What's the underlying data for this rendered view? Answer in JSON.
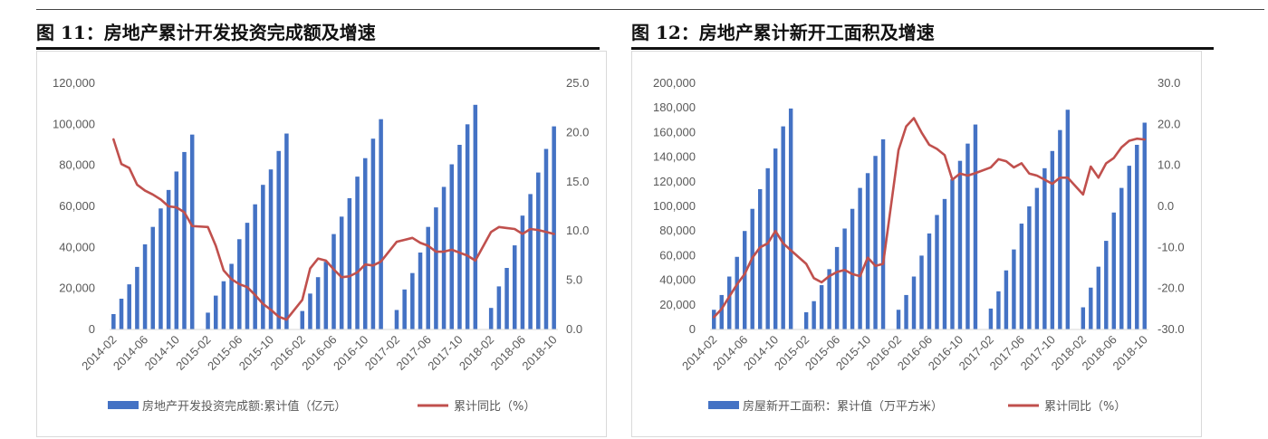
{
  "chart_data": [
    {
      "title": "图 11：房地产累计开发投资完成额及增速",
      "type": "bar",
      "y_left_ticks": [
        "0",
        "20,000",
        "40,000",
        "60,000",
        "80,000",
        "100,000",
        "120,000"
      ],
      "y_left_range": [
        0,
        120000
      ],
      "y_right_ticks": [
        "0.0",
        "5.0",
        "10.0",
        "15.0",
        "20.0",
        "25.0"
      ],
      "y_right_range": [
        0,
        25
      ],
      "x_tick_labels": [
        "2014-02",
        "2014-06",
        "2014-10",
        "2015-02",
        "2015-06",
        "2015-10",
        "2016-02",
        "2016-06",
        "2016-10",
        "2017-02",
        "2017-06",
        "2017-10",
        "2018-02",
        "2018-06",
        "2018-10"
      ],
      "months": [
        "2014-02",
        "2014-03",
        "2014-04",
        "2014-05",
        "2014-06",
        "2014-07",
        "2014-08",
        "2014-09",
        "2014-10",
        "2014-11",
        "2014-12",
        "2015-02",
        "2015-03",
        "2015-04",
        "2015-05",
        "2015-06",
        "2015-07",
        "2015-08",
        "2015-09",
        "2015-10",
        "2015-11",
        "2015-12",
        "2016-02",
        "2016-03",
        "2016-04",
        "2016-05",
        "2016-06",
        "2016-07",
        "2016-08",
        "2016-09",
        "2016-10",
        "2016-11",
        "2016-12",
        "2017-02",
        "2017-03",
        "2017-04",
        "2017-05",
        "2017-06",
        "2017-07",
        "2017-08",
        "2017-09",
        "2017-10",
        "2017-11",
        "2017-12",
        "2018-02",
        "2018-03",
        "2018-04",
        "2018-05",
        "2018-06",
        "2018-07",
        "2018-08",
        "2018-09",
        "2018-10"
      ],
      "series": [
        {
          "name": "房地产开发投资完成额:累计值（亿元）",
          "kind": "bar",
          "axis": "left",
          "color": "#4472c4",
          "values": [
            7500,
            15000,
            22000,
            30500,
            41500,
            50000,
            59000,
            68000,
            77000,
            86500,
            95000,
            8200,
            16500,
            23500,
            32000,
            44000,
            52000,
            61000,
            70500,
            78000,
            87000,
            95500,
            9000,
            17500,
            25500,
            33000,
            46500,
            55000,
            64000,
            74500,
            83500,
            93000,
            102500,
            9500,
            19500,
            27500,
            37500,
            50000,
            59500,
            69500,
            80500,
            90000,
            100000,
            109500,
            10500,
            21000,
            30000,
            41000,
            55500,
            66000,
            76500,
            88000,
            99000
          ]
        },
        {
          "name": "累计同比（%）",
          "kind": "line",
          "axis": "right",
          "color": "#c0504d",
          "values": [
            19.3,
            16.8,
            16.4,
            14.7,
            14.1,
            13.7,
            13.2,
            12.5,
            12.4,
            11.9,
            10.5,
            10.4,
            8.5,
            6.0,
            5.1,
            4.6,
            4.3,
            3.5,
            2.6,
            2.0,
            1.3,
            1.0,
            3.0,
            6.2,
            7.2,
            7.0,
            6.1,
            5.3,
            5.4,
            5.8,
            6.6,
            6.5,
            6.9,
            8.9,
            9.1,
            9.3,
            8.8,
            8.5,
            7.9,
            7.9,
            8.1,
            7.8,
            7.5,
            7.0,
            9.9,
            10.4,
            10.3,
            10.2,
            9.7,
            10.2,
            10.1,
            9.9,
            9.7
          ]
        }
      ]
    },
    {
      "title": "图 12：房地产累计新开工面积及增速",
      "type": "bar",
      "y_left_ticks": [
        "0",
        "20,000",
        "40,000",
        "60,000",
        "80,000",
        "100,000",
        "120,000",
        "140,000",
        "160,000",
        "180,000",
        "200,000"
      ],
      "y_left_range": [
        0,
        200000
      ],
      "y_right_ticks": [
        "-30.0",
        "-20.0",
        "-10.0",
        "0.0",
        "10.0",
        "20.0",
        "30.0"
      ],
      "y_right_range": [
        -30,
        30
      ],
      "x_tick_labels": [
        "2014-02",
        "2014-06",
        "2014-10",
        "2015-02",
        "2015-06",
        "2015-10",
        "2016-02",
        "2016-06",
        "2016-10",
        "2017-02",
        "2017-06",
        "2017-10",
        "2018-02",
        "2018-06",
        "2018-10"
      ],
      "months": [
        "2014-02",
        "2014-03",
        "2014-04",
        "2014-05",
        "2014-06",
        "2014-07",
        "2014-08",
        "2014-09",
        "2014-10",
        "2014-11",
        "2014-12",
        "2015-02",
        "2015-03",
        "2015-04",
        "2015-05",
        "2015-06",
        "2015-07",
        "2015-08",
        "2015-09",
        "2015-10",
        "2015-11",
        "2015-12",
        "2016-02",
        "2016-03",
        "2016-04",
        "2016-05",
        "2016-06",
        "2016-07",
        "2016-08",
        "2016-09",
        "2016-10",
        "2016-11",
        "2016-12",
        "2017-02",
        "2017-03",
        "2017-04",
        "2017-05",
        "2017-06",
        "2017-07",
        "2017-08",
        "2017-09",
        "2017-10",
        "2017-11",
        "2017-12",
        "2018-02",
        "2018-03",
        "2018-04",
        "2018-05",
        "2018-06",
        "2018-07",
        "2018-08",
        "2018-09",
        "2018-10"
      ],
      "series": [
        {
          "name": "房屋新开工面积：累计值（万平方米）",
          "kind": "bar",
          "axis": "left",
          "color": "#4472c4",
          "values": [
            16000,
            28000,
            43000,
            59000,
            80000,
            98000,
            114000,
            131000,
            147000,
            165000,
            179500,
            14000,
            23000,
            36000,
            49000,
            67000,
            82000,
            98000,
            115000,
            127000,
            141000,
            154500,
            16000,
            28000,
            43000,
            60000,
            78000,
            93000,
            106000,
            122000,
            137000,
            151000,
            166500,
            17000,
            31000,
            48000,
            65000,
            86000,
            100000,
            115000,
            131000,
            145000,
            162000,
            178500,
            18000,
            34000,
            51000,
            72000,
            95000,
            115000,
            133000,
            150000,
            168000
          ]
        },
        {
          "name": "累计同比（%）",
          "kind": "line",
          "axis": "right",
          "color": "#c0504d",
          "values": [
            -27.0,
            -25.0,
            -22.0,
            -19.0,
            -16.5,
            -12.5,
            -10.0,
            -9.0,
            -6.0,
            -9.0,
            -10.7,
            -14.0,
            -17.5,
            -18.5,
            -17.0,
            -16.0,
            -15.5,
            -16.5,
            -17.0,
            -12.5,
            -14.5,
            -14.0,
            13.7,
            19.5,
            21.5,
            18.0,
            15.0,
            14.0,
            12.5,
            6.5,
            8.0,
            7.5,
            8.1,
            9.5,
            11.5,
            11.0,
            9.5,
            10.5,
            8.0,
            7.5,
            6.5,
            5.5,
            7.0,
            7.0,
            2.9,
            9.7,
            7.0,
            10.5,
            11.8,
            14.4,
            16.0,
            16.5,
            16.3
          ]
        }
      ]
    }
  ]
}
